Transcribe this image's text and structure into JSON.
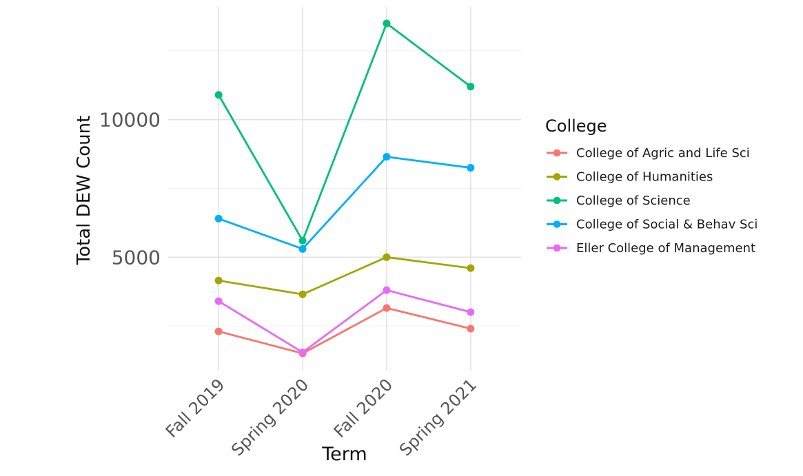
{
  "chart_data": {
    "type": "line",
    "title": "",
    "xlabel": "Term",
    "ylabel": "Total DEW Count",
    "categories": [
      "Fall 2019",
      "Spring 2020",
      "Fall 2020",
      "Spring 2021"
    ],
    "series": [
      {
        "name": "College of Agric and Life Sci",
        "color": "#F8766D",
        "values": [
          2300,
          1500,
          3150,
          2400
        ]
      },
      {
        "name": "College of Humanities",
        "color": "#A3A500",
        "values": [
          4150,
          3650,
          5000,
          4600
        ]
      },
      {
        "name": "College of Science",
        "color": "#00BF7D",
        "values": [
          10900,
          5600,
          13500,
          11200
        ]
      },
      {
        "name": "College of Social & Behav Sci",
        "color": "#00B0F6",
        "values": [
          6400,
          5300,
          8650,
          8250
        ]
      },
      {
        "name": "Eller College of Management",
        "color": "#E76BF3",
        "values": [
          3400,
          1540,
          3800,
          3000
        ]
      }
    ],
    "legend": {
      "title": "College",
      "position": "right"
    },
    "y_axis": {
      "ticks": [
        {
          "value": 5000,
          "label": "5000"
        },
        {
          "value": 10000,
          "label": "10000"
        }
      ],
      "minor_gridlines": [
        2500,
        7500,
        12500
      ],
      "ylim": [
        900,
        14100
      ]
    },
    "grid": "on",
    "colors": {
      "major_grid": "#E3E3E3",
      "minor_grid": "#F0F0F0",
      "tick_text": "#555555",
      "title_text": "#111111"
    }
  }
}
